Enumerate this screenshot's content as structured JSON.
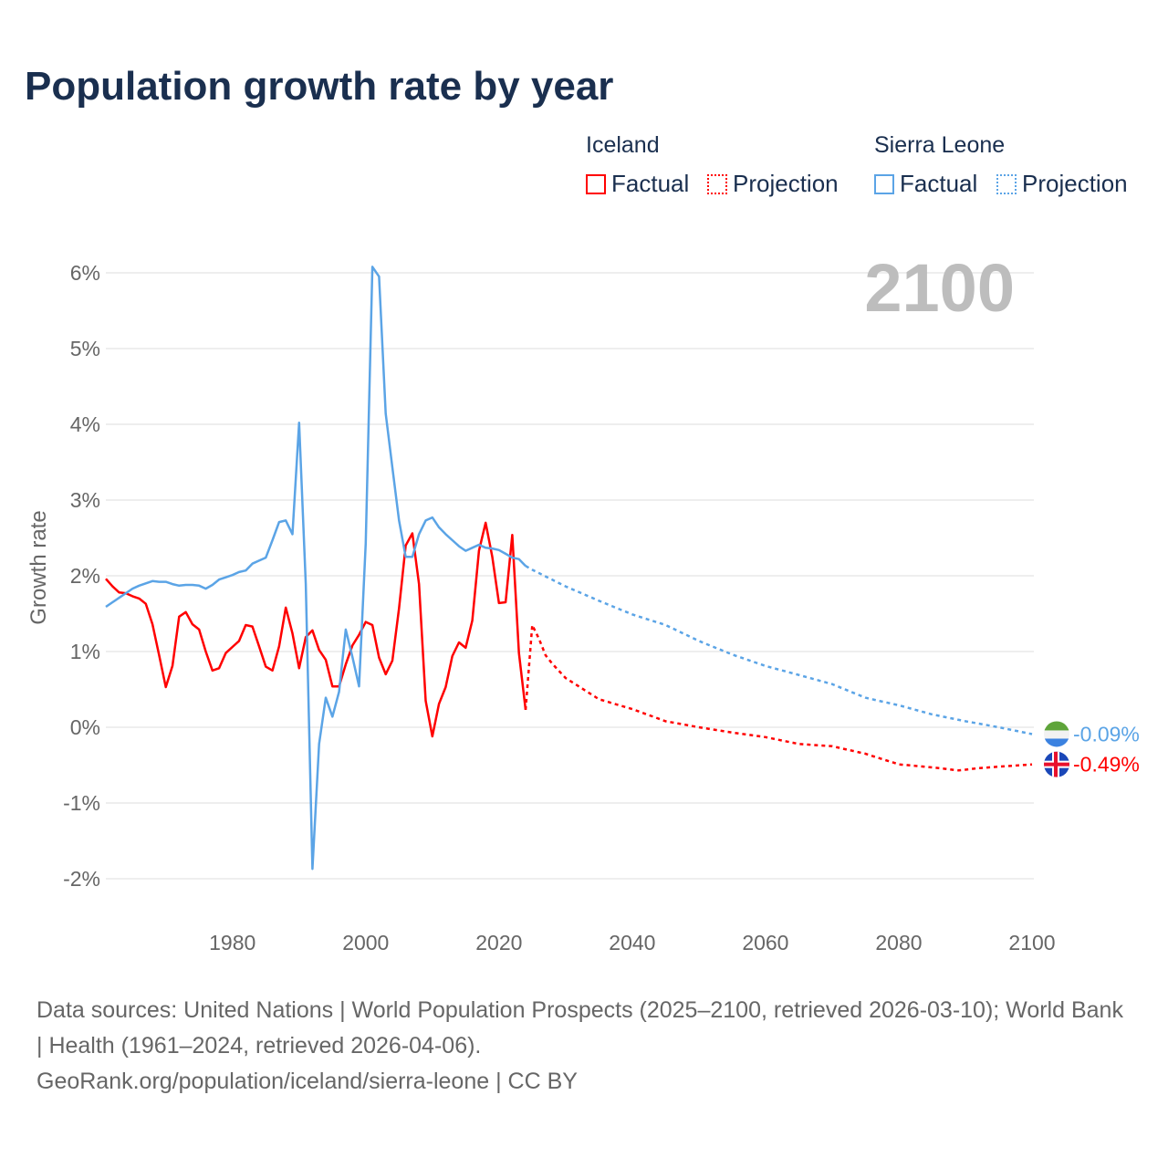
{
  "title": "Population growth rate by year",
  "legend": {
    "groups": [
      {
        "name": "Iceland",
        "color": "#ff0000",
        "items": [
          "Factual",
          "Projection"
        ]
      },
      {
        "name": "Sierra Leone",
        "color": "#5ba4e6",
        "items": [
          "Factual",
          "Projection"
        ]
      }
    ]
  },
  "year_watermark": "2100",
  "source": {
    "line1": "Data sources: United Nations | World Population Prospects (2025–2100, retrieved 2026-03-10); World Bank | Health (1961–2024, retrieved 2026-04-06).",
    "line2": "GeoRank.org/population/iceland/sierra-leone | CC BY"
  },
  "chart_data": {
    "type": "line",
    "title": "Population growth rate by year",
    "ylabel": "Growth rate",
    "xlim": [
      1961,
      2100
    ],
    "ylim": [
      -2.4,
      6.3
    ],
    "xticks": [
      1980,
      2000,
      2020,
      2040,
      2060,
      2080,
      2100
    ],
    "yticks": [
      -2,
      -1,
      0,
      1,
      2,
      3,
      4,
      5,
      6
    ],
    "ytick_labels": [
      "-2%",
      "-1%",
      "0%",
      "1%",
      "2%",
      "3%",
      "4%",
      "5%",
      "6%"
    ],
    "series": [
      {
        "name": "Iceland",
        "color": "#ff0000",
        "end_label": "-0.49%",
        "factual_start": 1961,
        "factual": [
          1.96,
          1.86,
          1.78,
          1.77,
          1.73,
          1.7,
          1.63,
          1.36,
          0.95,
          0.53,
          0.81,
          1.46,
          1.52,
          1.36,
          1.29,
          1.0,
          0.75,
          0.78,
          0.98,
          1.06,
          1.14,
          1.35,
          1.33,
          1.07,
          0.8,
          0.75,
          1.07,
          1.58,
          1.24,
          0.78,
          1.19,
          1.28,
          1.02,
          0.89,
          0.54,
          0.54,
          0.83,
          1.08,
          1.22,
          1.39,
          1.35,
          0.92,
          0.7,
          0.88,
          1.57,
          2.4,
          2.56,
          1.89,
          0.35,
          -0.12,
          0.31,
          0.53,
          0.94,
          1.12,
          1.05,
          1.41,
          2.33,
          2.7,
          2.25,
          1.64,
          1.65,
          2.54,
          0.98,
          0.23
        ],
        "projection_keys": [
          [
            2024,
            0.23
          ],
          [
            2025,
            1.35
          ],
          [
            2026,
            1.17
          ],
          [
            2027,
            0.95
          ],
          [
            2028,
            0.84
          ],
          [
            2030,
            0.65
          ],
          [
            2035,
            0.37
          ],
          [
            2040,
            0.24
          ],
          [
            2045,
            0.08
          ],
          [
            2050,
            0.0
          ],
          [
            2055,
            -0.07
          ],
          [
            2060,
            -0.13
          ],
          [
            2065,
            -0.22
          ],
          [
            2070,
            -0.25
          ],
          [
            2075,
            -0.35
          ],
          [
            2080,
            -0.49
          ],
          [
            2085,
            -0.53
          ],
          [
            2089,
            -0.57
          ],
          [
            2092,
            -0.54
          ],
          [
            2095,
            -0.52
          ],
          [
            2100,
            -0.49
          ]
        ]
      },
      {
        "name": "Sierra Leone",
        "color": "#5ba4e6",
        "end_label": "-0.09%",
        "factual_start": 1961,
        "factual": [
          1.59,
          1.65,
          1.71,
          1.77,
          1.83,
          1.87,
          1.9,
          1.93,
          1.92,
          1.92,
          1.89,
          1.87,
          1.88,
          1.88,
          1.87,
          1.83,
          1.88,
          1.95,
          1.98,
          2.01,
          2.05,
          2.07,
          2.16,
          2.2,
          2.24,
          2.47,
          2.71,
          2.73,
          2.55,
          4.02,
          1.89,
          -1.87,
          -0.22,
          0.39,
          0.14,
          0.47,
          1.29,
          0.93,
          0.54,
          2.43,
          6.08,
          5.95,
          4.14,
          3.43,
          2.73,
          2.25,
          2.25,
          2.55,
          2.73,
          2.77,
          2.64,
          2.55,
          2.47,
          2.39,
          2.33,
          2.37,
          2.41,
          2.37,
          2.36,
          2.34,
          2.29,
          2.24,
          2.22,
          2.13
        ],
        "projection_keys": [
          [
            2024,
            2.13
          ],
          [
            2025,
            2.08
          ],
          [
            2030,
            1.86
          ],
          [
            2035,
            1.67
          ],
          [
            2040,
            1.49
          ],
          [
            2045,
            1.35
          ],
          [
            2050,
            1.14
          ],
          [
            2055,
            0.96
          ],
          [
            2060,
            0.81
          ],
          [
            2065,
            0.69
          ],
          [
            2070,
            0.57
          ],
          [
            2075,
            0.39
          ],
          [
            2080,
            0.29
          ],
          [
            2085,
            0.17
          ],
          [
            2090,
            0.08
          ],
          [
            2095,
            0.0
          ],
          [
            2100,
            -0.09
          ]
        ]
      }
    ]
  }
}
